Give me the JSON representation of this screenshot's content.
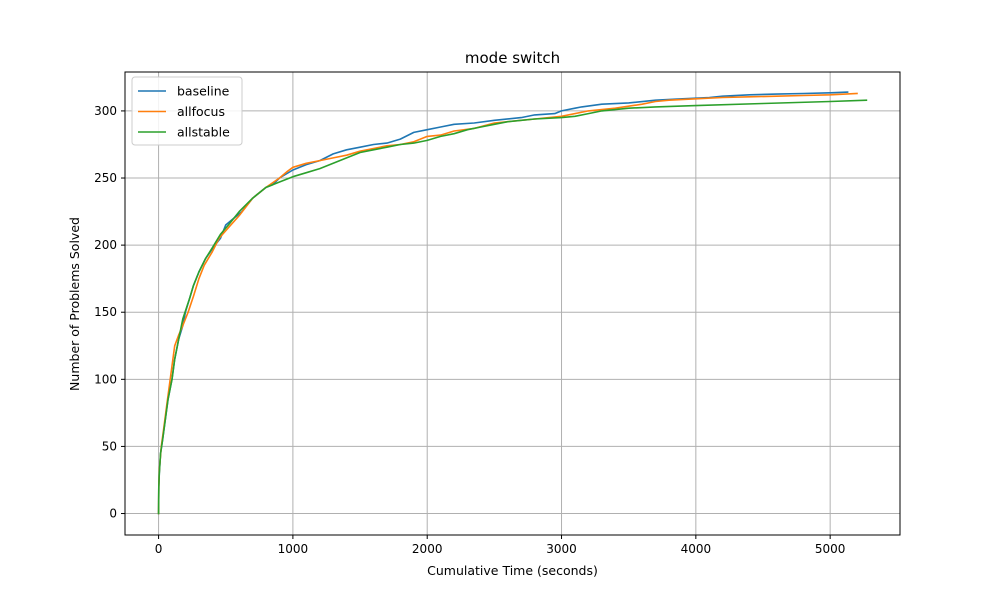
{
  "chart_data": {
    "type": "line",
    "title": "mode switch",
    "xlabel": "Cumulative Time (seconds)",
    "ylabel": "Number of Problems Solved",
    "xlim": [
      -250,
      5520
    ],
    "ylim": [
      -16,
      329
    ],
    "xticks": [
      0,
      1000,
      2000,
      3000,
      4000,
      5000
    ],
    "yticks": [
      0,
      50,
      100,
      150,
      200,
      250,
      300
    ],
    "grid": true,
    "legend_position": "top-left",
    "series": [
      {
        "name": "baseline",
        "color": "#1f77b4",
        "points": [
          [
            0,
            0
          ],
          [
            2,
            20
          ],
          [
            5,
            30
          ],
          [
            15,
            45
          ],
          [
            30,
            55
          ],
          [
            50,
            70
          ],
          [
            70,
            85
          ],
          [
            100,
            100
          ],
          [
            120,
            115
          ],
          [
            150,
            130
          ],
          [
            180,
            140
          ],
          [
            200,
            150
          ],
          [
            230,
            160
          ],
          [
            260,
            170
          ],
          [
            300,
            180
          ],
          [
            350,
            190
          ],
          [
            420,
            200
          ],
          [
            460,
            205
          ],
          [
            500,
            215
          ],
          [
            560,
            220
          ],
          [
            620,
            225
          ],
          [
            700,
            235
          ],
          [
            800,
            243
          ],
          [
            850,
            245
          ],
          [
            900,
            250
          ],
          [
            1000,
            256
          ],
          [
            1100,
            260
          ],
          [
            1200,
            263
          ],
          [
            1300,
            268
          ],
          [
            1400,
            271
          ],
          [
            1500,
            273
          ],
          [
            1600,
            275
          ],
          [
            1700,
            276
          ],
          [
            1800,
            279
          ],
          [
            1900,
            284
          ],
          [
            2000,
            286
          ],
          [
            2100,
            288
          ],
          [
            2200,
            290
          ],
          [
            2350,
            291
          ],
          [
            2500,
            293
          ],
          [
            2700,
            295
          ],
          [
            2800,
            297
          ],
          [
            2950,
            298
          ],
          [
            3000,
            300
          ],
          [
            3100,
            302
          ],
          [
            3150,
            303
          ],
          [
            3300,
            305
          ],
          [
            3500,
            306
          ],
          [
            3700,
            308
          ],
          [
            3900,
            309
          ],
          [
            4100,
            310
          ],
          [
            4200,
            311
          ],
          [
            4400,
            312
          ],
          [
            4600,
            312.5
          ],
          [
            4800,
            313
          ],
          [
            5000,
            313.5
          ],
          [
            5130,
            314
          ]
        ]
      },
      {
        "name": "allfocus",
        "color": "#ff7f0e",
        "points": [
          [
            0,
            0
          ],
          [
            2,
            20
          ],
          [
            5,
            32
          ],
          [
            20,
            50
          ],
          [
            40,
            65
          ],
          [
            60,
            80
          ],
          [
            80,
            95
          ],
          [
            100,
            110
          ],
          [
            120,
            125
          ],
          [
            150,
            133
          ],
          [
            180,
            140
          ],
          [
            220,
            150
          ],
          [
            260,
            162
          ],
          [
            300,
            175
          ],
          [
            340,
            185
          ],
          [
            400,
            195
          ],
          [
            450,
            205
          ],
          [
            520,
            213
          ],
          [
            600,
            222
          ],
          [
            700,
            235
          ],
          [
            800,
            243
          ],
          [
            900,
            250
          ],
          [
            960,
            255
          ],
          [
            1000,
            258
          ],
          [
            1100,
            261
          ],
          [
            1200,
            263
          ],
          [
            1300,
            265
          ],
          [
            1400,
            267
          ],
          [
            1500,
            270
          ],
          [
            1600,
            272
          ],
          [
            1700,
            274
          ],
          [
            1800,
            275
          ],
          [
            1900,
            277
          ],
          [
            2000,
            281
          ],
          [
            2100,
            282
          ],
          [
            2200,
            285
          ],
          [
            2350,
            287
          ],
          [
            2500,
            291
          ],
          [
            2700,
            293
          ],
          [
            2800,
            294
          ],
          [
            3000,
            296
          ],
          [
            3200,
            300
          ],
          [
            3400,
            302
          ],
          [
            3600,
            305
          ],
          [
            3700,
            307
          ],
          [
            3800,
            308
          ],
          [
            4000,
            309
          ],
          [
            4200,
            310
          ],
          [
            4400,
            310.5
          ],
          [
            4600,
            311
          ],
          [
            4800,
            311.5
          ],
          [
            5000,
            312
          ],
          [
            5200,
            313
          ]
        ]
      },
      {
        "name": "allstable",
        "color": "#2ca02c",
        "points": [
          [
            0,
            0
          ],
          [
            2,
            20
          ],
          [
            5,
            30
          ],
          [
            15,
            45
          ],
          [
            30,
            55
          ],
          [
            50,
            70
          ],
          [
            70,
            85
          ],
          [
            100,
            100
          ],
          [
            120,
            115
          ],
          [
            150,
            130
          ],
          [
            180,
            145
          ],
          [
            230,
            160
          ],
          [
            260,
            170
          ],
          [
            300,
            180
          ],
          [
            350,
            190
          ],
          [
            400,
            198
          ],
          [
            460,
            208
          ],
          [
            520,
            215
          ],
          [
            600,
            225
          ],
          [
            700,
            235
          ],
          [
            800,
            243
          ],
          [
            900,
            247
          ],
          [
            1000,
            251
          ],
          [
            1100,
            254
          ],
          [
            1200,
            257
          ],
          [
            1300,
            261
          ],
          [
            1400,
            265
          ],
          [
            1500,
            269
          ],
          [
            1600,
            271
          ],
          [
            1700,
            273
          ],
          [
            1800,
            275
          ],
          [
            1900,
            276
          ],
          [
            2000,
            278
          ],
          [
            2100,
            281
          ],
          [
            2200,
            283
          ],
          [
            2300,
            286
          ],
          [
            2400,
            288
          ],
          [
            2500,
            290
          ],
          [
            2600,
            292
          ],
          [
            2800,
            294
          ],
          [
            3000,
            295
          ],
          [
            3100,
            296
          ],
          [
            3200,
            298
          ],
          [
            3300,
            300
          ],
          [
            3500,
            302
          ],
          [
            3700,
            303
          ],
          [
            4000,
            304
          ],
          [
            4500,
            305.5
          ],
          [
            5000,
            307
          ],
          [
            5270,
            308
          ]
        ]
      }
    ]
  }
}
